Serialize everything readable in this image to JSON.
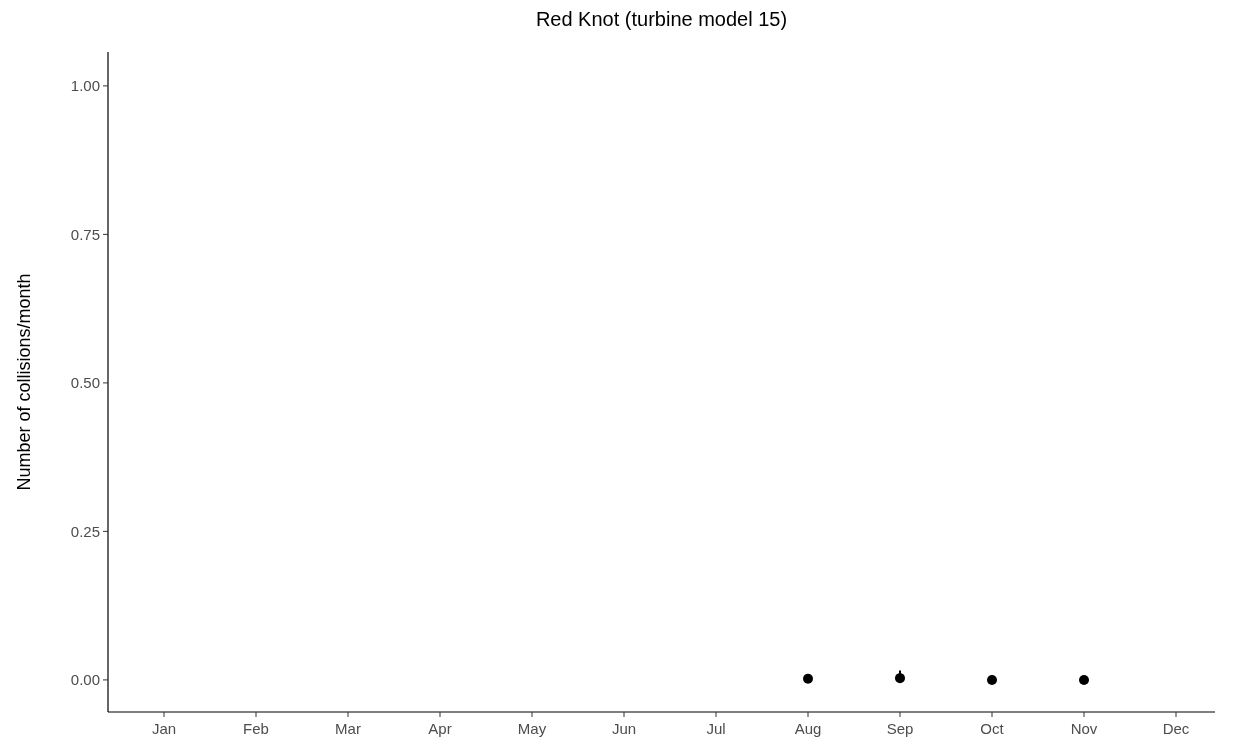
{
  "chart_data": {
    "type": "scatter",
    "title": "Red Knot (turbine model 15)",
    "ylabel": "Number of collisions/month",
    "categories": [
      "Jan",
      "Feb",
      "Mar",
      "Apr",
      "May",
      "Jun",
      "Jul",
      "Aug",
      "Sep",
      "Oct",
      "Nov",
      "Dec"
    ],
    "series": [
      {
        "color": "#000000",
        "values": [
          null,
          null,
          null,
          null,
          null,
          null,
          null,
          0.002,
          0.003,
          0,
          0,
          null
        ],
        "errors": [
          null,
          null,
          null,
          null,
          null,
          null,
          null,
          null,
          [
            0,
            0.013
          ],
          null,
          null,
          null
        ]
      }
    ],
    "ylim": [
      -0.054,
      1.057
    ],
    "yticks": [
      {
        "value": 0,
        "label": "0.00"
      },
      {
        "value": 0.25,
        "label": "0.25"
      },
      {
        "value": 0.5,
        "label": "0.50"
      },
      {
        "value": 0.75,
        "label": "0.75"
      },
      {
        "value": 1,
        "label": "1.00"
      }
    ],
    "marker": "circle",
    "grid": false
  }
}
